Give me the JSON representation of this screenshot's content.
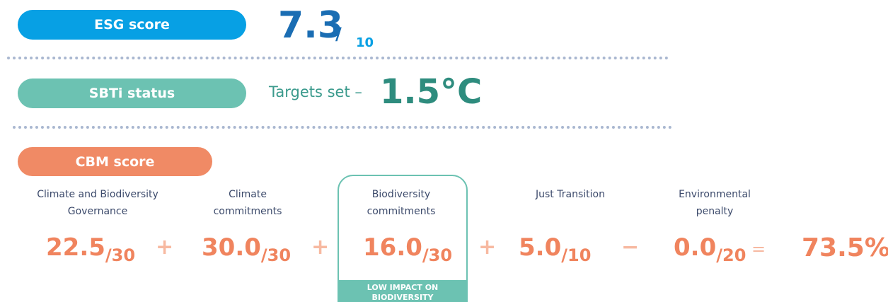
{
  "esg": {
    "label": "ESG score",
    "score": "7.3",
    "slash": "/",
    "max": "10"
  },
  "sbti": {
    "label": "SBTi status",
    "text": "Targets set –",
    "value": "1.5°C"
  },
  "cbm": {
    "label": "CBM score",
    "components": [
      {
        "name": [
          "Climate and Biodiversity",
          "Governance"
        ],
        "score": "22.5",
        "max": "/30"
      },
      {
        "name": [
          "Climate",
          "commitments"
        ],
        "score": "30.0",
        "max": "/30"
      },
      {
        "name": [
          "Biodiversity",
          "commitments"
        ],
        "score": "16.0",
        "max": "/30",
        "badge": [
          "LOW IMPACT ON",
          "BIODIVERSITY"
        ]
      },
      {
        "name": [
          "Just Transition"
        ],
        "score": "5.0",
        "max": "/10"
      },
      {
        "name": [
          "Environmental",
          "penalty"
        ],
        "score": "0.0",
        "max": "/20"
      }
    ],
    "operators": [
      "+",
      "+",
      "+",
      "−",
      "="
    ],
    "total": "73.5%"
  }
}
